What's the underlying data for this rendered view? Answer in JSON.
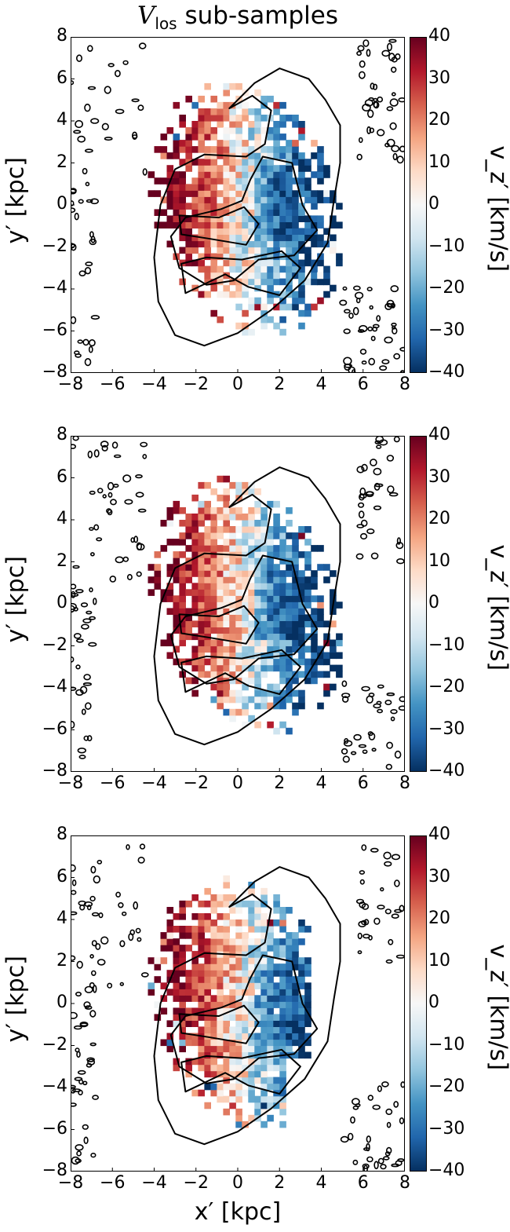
{
  "title_var": "V",
  "title_sub": "los",
  "title_rest": " sub-samples",
  "chart_data": [
    {
      "type": "heatmap",
      "panel": "top",
      "xlabel": "",
      "ylabel": "y′ [kpc]",
      "xlim": [
        -8,
        8
      ],
      "ylim": [
        -8,
        8
      ],
      "xticks": [
        "−8",
        "−6",
        "−4",
        "−2",
        "0",
        "2",
        "4",
        "6",
        "8"
      ],
      "yticks": [
        "−8",
        "−6",
        "−4",
        "−2",
        "0",
        "2",
        "4",
        "6",
        "8"
      ],
      "colorbar": {
        "label": "v_z′ [km/s]",
        "range": [
          -40,
          40
        ],
        "ticks": [
          "−40",
          "−30",
          "−20",
          "−10",
          "0",
          "10",
          "20",
          "30",
          "40"
        ]
      },
      "cmap": "RdBu_r"
    },
    {
      "type": "heatmap",
      "panel": "middle",
      "xlabel": "",
      "ylabel": "y′ [kpc]",
      "xlim": [
        -8,
        8
      ],
      "ylim": [
        -8,
        8
      ],
      "xticks": [
        "−8",
        "−6",
        "−4",
        "−2",
        "0",
        "2",
        "4",
        "6",
        "8"
      ],
      "yticks": [
        "−8",
        "−6",
        "−4",
        "−2",
        "0",
        "2",
        "4",
        "6",
        "8"
      ],
      "colorbar": {
        "label": "v_z′ [km/s]",
        "range": [
          -40,
          40
        ],
        "ticks": [
          "−40",
          "−30",
          "−20",
          "−10",
          "0",
          "10",
          "20",
          "30",
          "40"
        ]
      },
      "cmap": "RdBu_r"
    },
    {
      "type": "heatmap",
      "panel": "bottom",
      "xlabel": "x′ [kpc]",
      "ylabel": "y′ [kpc]",
      "xlim": [
        -8,
        8
      ],
      "ylim": [
        -8,
        8
      ],
      "xticks": [
        "−8",
        "−6",
        "−4",
        "−2",
        "0",
        "2",
        "4",
        "6",
        "8"
      ],
      "yticks": [
        "−8",
        "−6",
        "−4",
        "−2",
        "0",
        "2",
        "4",
        "6",
        "8"
      ],
      "colorbar": {
        "label": "v_z′ [km/s]",
        "range": [
          -40,
          40
        ],
        "ticks": [
          "−40",
          "−30",
          "−20",
          "−10",
          "0",
          "10",
          "20",
          "30",
          "40"
        ]
      },
      "cmap": "RdBu_r"
    }
  ]
}
